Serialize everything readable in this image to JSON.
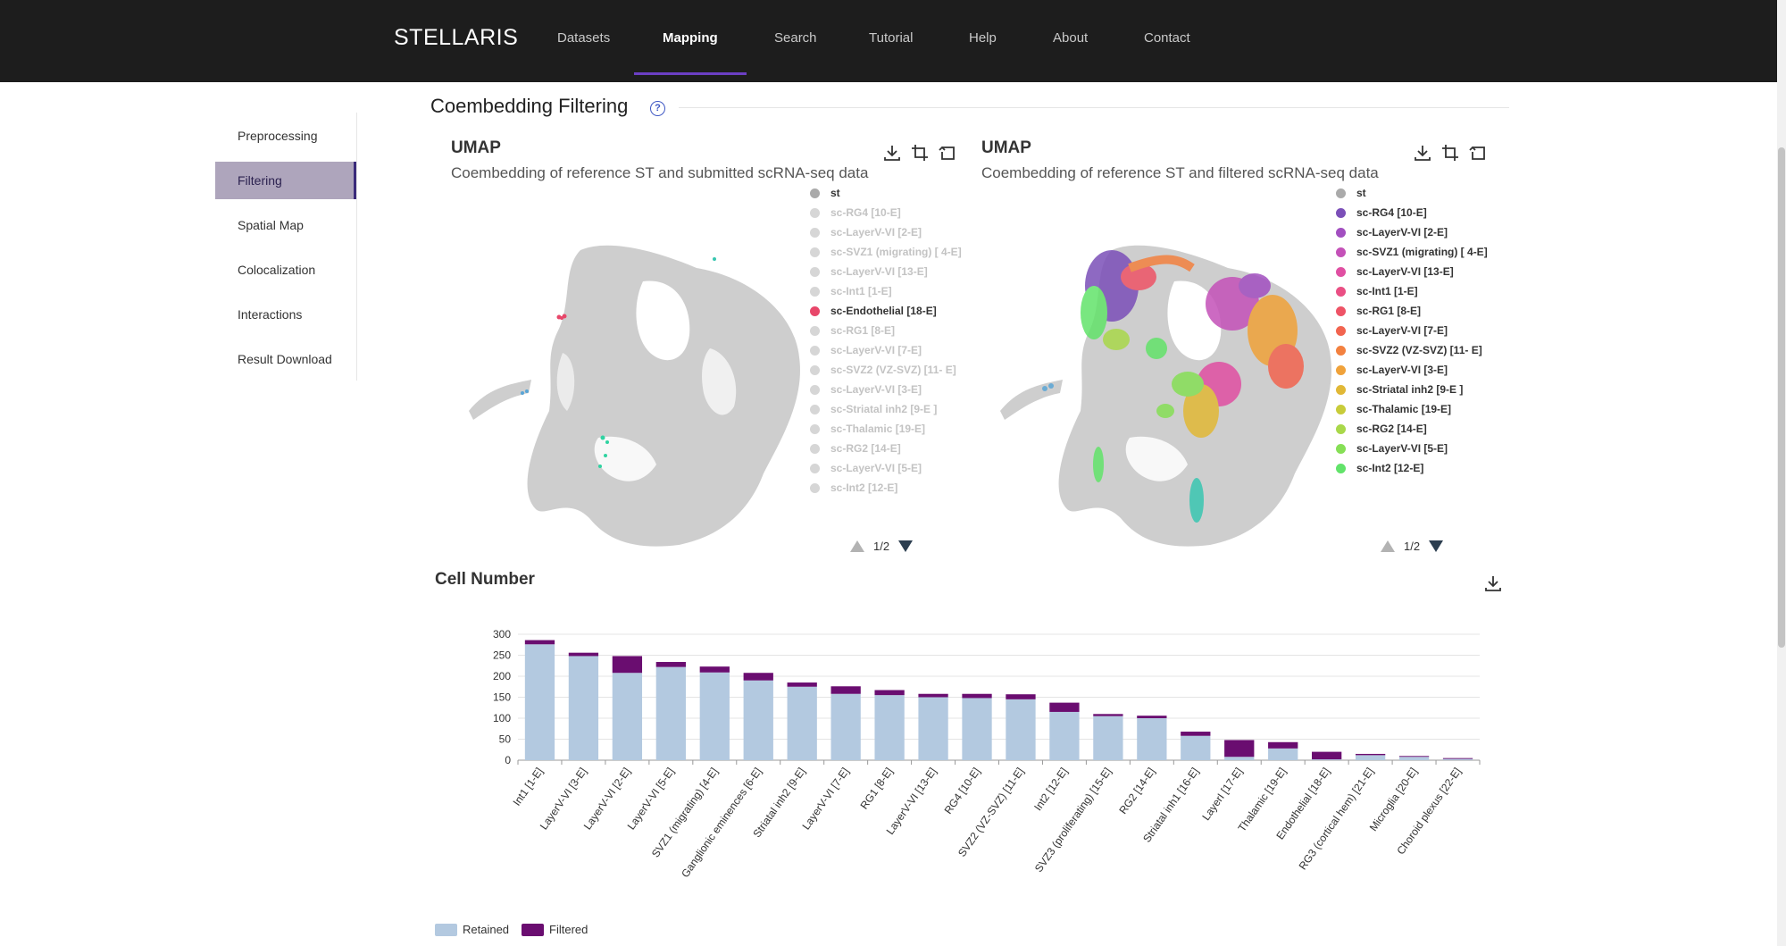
{
  "nav": {
    "brand": "STELLARIS",
    "items": [
      "Datasets",
      "Mapping",
      "Search",
      "Tutorial",
      "Help",
      "About",
      "Contact"
    ],
    "active": "Mapping"
  },
  "sidebar": {
    "items": [
      "Preprocessing",
      "Filtering",
      "Spatial Map",
      "Colocalization",
      "Interactions",
      "Result Download"
    ],
    "active": "Filtering"
  },
  "section": {
    "title": "Coembedding Filtering",
    "help": "?"
  },
  "umap_left": {
    "title": "UMAP",
    "subtitle": "Coembedding of reference ST and submitted scRNA-seq data",
    "pager": "1/2",
    "legend": [
      {
        "label": "st",
        "color": "#aaaaaa",
        "active": true
      },
      {
        "label": "sc-RG4 [10-E]",
        "color": "#d6d6d6",
        "active": false
      },
      {
        "label": "sc-LayerV-VI [2-E]",
        "color": "#d6d6d6",
        "active": false
      },
      {
        "label": "sc-SVZ1 (migrating) [ 4-E]",
        "color": "#d6d6d6",
        "active": false
      },
      {
        "label": "sc-LayerV-VI [13-E]",
        "color": "#d6d6d6",
        "active": false
      },
      {
        "label": "sc-Int1 [1-E]",
        "color": "#d6d6d6",
        "active": false
      },
      {
        "label": "sc-Endothelial [18-E]",
        "color": "#e8476a",
        "active": true
      },
      {
        "label": "sc-RG1 [8-E]",
        "color": "#d6d6d6",
        "active": false
      },
      {
        "label": "sc-LayerV-VI [7-E]",
        "color": "#d6d6d6",
        "active": false
      },
      {
        "label": "sc-SVZ2 (VZ-SVZ) [11- E]",
        "color": "#d6d6d6",
        "active": false
      },
      {
        "label": "sc-LayerV-VI [3-E]",
        "color": "#d6d6d6",
        "active": false
      },
      {
        "label": "sc-Striatal inh2 [9-E ]",
        "color": "#d6d6d6",
        "active": false
      },
      {
        "label": "sc-Thalamic [19-E]",
        "color": "#d6d6d6",
        "active": false
      },
      {
        "label": "sc-RG2 [14-E]",
        "color": "#d6d6d6",
        "active": false
      },
      {
        "label": "sc-LayerV-VI [5-E]",
        "color": "#d6d6d6",
        "active": false
      },
      {
        "label": "sc-Int2 [12-E]",
        "color": "#d6d6d6",
        "active": false
      }
    ]
  },
  "umap_right": {
    "title": "UMAP",
    "subtitle": "Coembedding of reference ST and filtered scRNA-seq data",
    "pager": "1/2",
    "legend": [
      {
        "label": "st",
        "color": "#aaaaaa",
        "active": true
      },
      {
        "label": "sc-RG4 [10-E]",
        "color": "#7b4fb8",
        "active": true
      },
      {
        "label": "sc-LayerV-VI [2-E]",
        "color": "#a24fc0",
        "active": true
      },
      {
        "label": "sc-SVZ1 (migrating) [ 4-E]",
        "color": "#c451b8",
        "active": true
      },
      {
        "label": "sc-LayerV-VI [13-E]",
        "color": "#e04fa2",
        "active": true
      },
      {
        "label": "sc-Int1 [1-E]",
        "color": "#ea4f84",
        "active": true
      },
      {
        "label": "sc-RG1 [8-E]",
        "color": "#ee5366",
        "active": true
      },
      {
        "label": "sc-LayerV-VI [7-E]",
        "color": "#f2644f",
        "active": true
      },
      {
        "label": "sc-SVZ2 (VZ-SVZ) [11- E]",
        "color": "#f3813f",
        "active": true
      },
      {
        "label": "sc-LayerV-VI [3-E]",
        "color": "#f0a23a",
        "active": true
      },
      {
        "label": "sc-Striatal inh2 [9-E ]",
        "color": "#e1b836",
        "active": true
      },
      {
        "label": "sc-Thalamic [19-E]",
        "color": "#c8cc3a",
        "active": true
      },
      {
        "label": "sc-RG2 [14-E]",
        "color": "#a9d84a",
        "active": true
      },
      {
        "label": "sc-LayerV-VI [5-E]",
        "color": "#86df56",
        "active": true
      },
      {
        "label": "sc-Int2 [12-E]",
        "color": "#62e36a",
        "active": true
      }
    ]
  },
  "cell_number": {
    "title": "Cell Number",
    "legend": [
      "Retained",
      "Filtered"
    ]
  },
  "chart_data": {
    "type": "bar",
    "stacked": true,
    "categories": [
      "Int1 [1-E]",
      "LayerV-VI [3-E]",
      "LayerV-VI [2-E]",
      "LayerV-VI [5-E]",
      "SVZ1 (migrating) [4-E]",
      "Ganglionic eminences [6-E]",
      "Striatal inh2 [9-E]",
      "LayerV-VI [7-E]",
      "RG1 [8-E]",
      "LayerV-VI [13-E]",
      "RG4 [10-E]",
      "SVZ2 (VZ-SVZ) [11-E]",
      "Int2 [12-E]",
      "SVZ3 (proliferating) [15-E]",
      "RG2 [14-E]",
      "Striatal inh1 [16-E]",
      "LayerI [17-E]",
      "Thalamic [19-E]",
      "Endothelial [18-E]",
      "RG3 (cortical hem) [21-E]",
      "Microglia [20-E]",
      "Choroid plexus [22-E]"
    ],
    "series": [
      {
        "name": "Retained",
        "color": "#b3c9e0",
        "values": [
          276,
          248,
          208,
          222,
          209,
          190,
          175,
          158,
          155,
          150,
          148,
          145,
          115,
          105,
          100,
          58,
          8,
          28,
          2,
          12,
          8,
          3
        ]
      },
      {
        "name": "Filtered",
        "color": "#6a0d70",
        "values": [
          10,
          8,
          40,
          12,
          14,
          18,
          10,
          18,
          12,
          8,
          10,
          12,
          22,
          5,
          6,
          10,
          40,
          15,
          18,
          3,
          2,
          2
        ]
      }
    ],
    "yticks": [
      0,
      50,
      100,
      150,
      200,
      250,
      300
    ],
    "ylim": [
      0,
      300
    ],
    "grid": true,
    "legend_position": "bottom-left"
  }
}
